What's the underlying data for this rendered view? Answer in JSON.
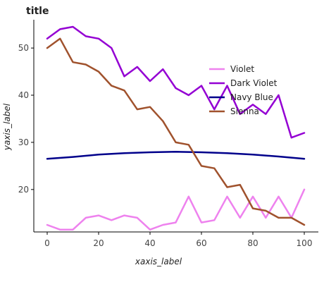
{
  "chart_data": {
    "type": "line",
    "title": "title",
    "xlabel": "xaxis_label",
    "ylabel": "yaxis_label",
    "xlim": [
      0,
      100
    ],
    "ylim": [
      11,
      56
    ],
    "x_ticks": [
      0,
      20,
      40,
      60,
      80,
      100
    ],
    "y_ticks": [
      20,
      30,
      40,
      50
    ],
    "grid": false,
    "legend_position": "right",
    "series": [
      {
        "name": "Violet",
        "color": "#ee82ee",
        "x": [
          0,
          5,
          10,
          15,
          20,
          25,
          30,
          35,
          40,
          45,
          50,
          55,
          60,
          65,
          70,
          75,
          80,
          85,
          90,
          95,
          100
        ],
        "y": [
          12.5,
          11.5,
          11.5,
          14.0,
          14.5,
          13.5,
          14.5,
          14.0,
          11.5,
          12.5,
          13.0,
          18.5,
          13.0,
          13.5,
          18.5,
          14.0,
          18.5,
          14.0,
          18.5,
          14.0,
          20.0
        ]
      },
      {
        "name": "Dark Violet",
        "color": "#9400d3",
        "x": [
          0,
          5,
          10,
          15,
          20,
          25,
          30,
          35,
          40,
          45,
          50,
          55,
          60,
          65,
          70,
          75,
          80,
          85,
          90,
          95,
          100
        ],
        "y": [
          52.0,
          54.0,
          54.5,
          52.5,
          52.0,
          50.0,
          44.0,
          46.0,
          43.0,
          45.5,
          41.5,
          40.0,
          42.0,
          37.0,
          42.0,
          36.0,
          38.0,
          36.0,
          40.0,
          31.0,
          32.0
        ]
      },
      {
        "name": "Navy Blue",
        "color": "#00008b",
        "x": [
          0,
          10,
          20,
          30,
          40,
          50,
          60,
          70,
          80,
          90,
          100
        ],
        "y": [
          26.5,
          26.9,
          27.4,
          27.7,
          27.9,
          28.0,
          27.9,
          27.7,
          27.4,
          27.0,
          26.5
        ]
      },
      {
        "name": "Sienna",
        "color": "#a0522d",
        "x": [
          0,
          5,
          10,
          15,
          20,
          25,
          30,
          35,
          40,
          45,
          50,
          55,
          60,
          65,
          70,
          75,
          80,
          85,
          90,
          95,
          100
        ],
        "y": [
          50.0,
          52.0,
          47.0,
          46.5,
          45.0,
          42.0,
          41.0,
          37.0,
          37.5,
          34.5,
          30.0,
          29.5,
          25.0,
          24.5,
          20.5,
          21.0,
          16.0,
          15.5,
          14.0,
          14.0,
          12.5
        ]
      }
    ]
  }
}
